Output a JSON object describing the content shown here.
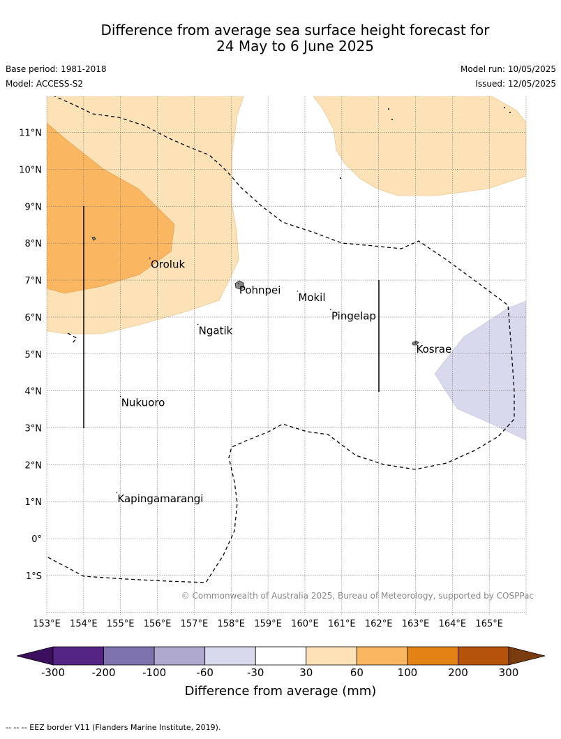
{
  "title_line1": "Difference from average sea surface height forecast for",
  "title_line2": "24 May to 6 June 2025",
  "base_period": "Base period: 1981-2018",
  "model": "Model: ACCESS-S2",
  "model_run": "Model run: 10/05/2025",
  "issued": "Issued: 12/05/2025",
  "copyright": "© Commonwealth of Australia 2025, Bureau of Meteorology, supported by COSPPac",
  "lon_labels": [
    "153°E",
    "154°E",
    "155°E",
    "156°E",
    "157°E",
    "158°E",
    "159°E",
    "160°E",
    "161°E",
    "162°E",
    "163°E",
    "164°E",
    "165°E"
  ],
  "lat_labels": [
    {
      "lat": 11,
      "label": "11°N"
    },
    {
      "lat": 10,
      "label": "10°N"
    },
    {
      "lat": 9,
      "label": "9°N"
    },
    {
      "lat": 8,
      "label": "8°N"
    },
    {
      "lat": 7,
      "label": "7°N"
    },
    {
      "lat": 6,
      "label": "6°N"
    },
    {
      "lat": 5,
      "label": "5°N"
    },
    {
      "lat": 4,
      "label": "4°N"
    },
    {
      "lat": 3,
      "label": "3°N"
    },
    {
      "lat": 2,
      "label": "2°N"
    },
    {
      "lat": 1,
      "label": "1°N"
    },
    {
      "lat": 0,
      "label": "0°"
    },
    {
      "lat": -1,
      "label": "1°S"
    }
  ],
  "places": [
    {
      "name": "Oroluk",
      "lon": 155.8,
      "lat": 7.6
    },
    {
      "name": "Pohnpei",
      "lon": 158.2,
      "lat": 6.9
    },
    {
      "name": "Mokil",
      "lon": 159.8,
      "lat": 6.7
    },
    {
      "name": "Pingelap",
      "lon": 160.7,
      "lat": 6.2
    },
    {
      "name": "Ngatik",
      "lon": 157.1,
      "lat": 5.8
    },
    {
      "name": "Kosrae",
      "lon": 163.0,
      "lat": 5.3
    },
    {
      "name": "Nukuoro",
      "lon": 155.0,
      "lat": 3.85
    },
    {
      "name": "Kapingamarangi",
      "lon": 154.9,
      "lat": 1.25
    }
  ],
  "colorbar": {
    "ticks": [
      "-300",
      "-200",
      "-100",
      "-60",
      "-30",
      "30",
      "60",
      "100",
      "200",
      "300"
    ],
    "colors": [
      "#552586",
      "#7f73ae",
      "#afa9d0",
      "#d8d9ec",
      "#ffffff",
      "#fde2b8",
      "#fbb661",
      "#e38316",
      "#b45309"
    ],
    "under_color": "#3b0f5e",
    "over_color": "#7a3b0e",
    "label": "Difference from average (mm)"
  },
  "footnote": "--  --  -- EEZ border V11 (Flanders Marine Institute, 2019)."
}
